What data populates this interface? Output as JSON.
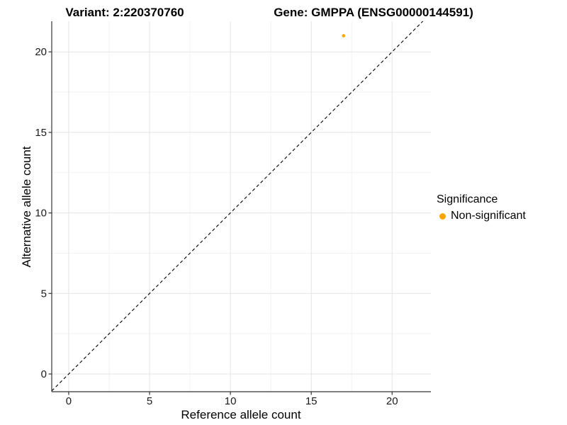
{
  "titles": {
    "variant": "Variant: 2:220370760",
    "gene": "Gene: GMPPA (ENSG00000144591)"
  },
  "legend": {
    "title": "Significance",
    "items": [
      {
        "label": "Non-significant",
        "color": "#FFA500"
      }
    ]
  },
  "chart_data": {
    "type": "scatter",
    "title": "Variant: 2:220370760 | Gene: GMPPA (ENSG00000144591)",
    "xlabel": "Reference allele count",
    "ylabel": "Alternative allele count",
    "xlim": [
      -1.05,
      22.4
    ],
    "ylim": [
      -1.1,
      21.9
    ],
    "xticks": [
      0,
      5,
      10,
      15,
      20
    ],
    "yticks": [
      0,
      5,
      10,
      15,
      20
    ],
    "x_minor": [
      2.5,
      7.5,
      12.5,
      17.5
    ],
    "y_minor": [
      2.5,
      7.5,
      12.5,
      17.5
    ],
    "grid": true,
    "legend_position": "right",
    "reference_line": {
      "type": "identity",
      "equation": "y = x",
      "style": "dashed",
      "color": "#000000"
    },
    "series": [
      {
        "name": "Non-significant",
        "color": "#FFA500",
        "marker": "circle",
        "points": [
          {
            "x": 17,
            "y": 21
          }
        ]
      }
    ]
  },
  "style": {
    "grid_major_color": "#E4E4E4",
    "grid_minor_color": "#F2F2F2",
    "axis_color": "#333333",
    "tick_label_color": "#1A1A1A"
  }
}
